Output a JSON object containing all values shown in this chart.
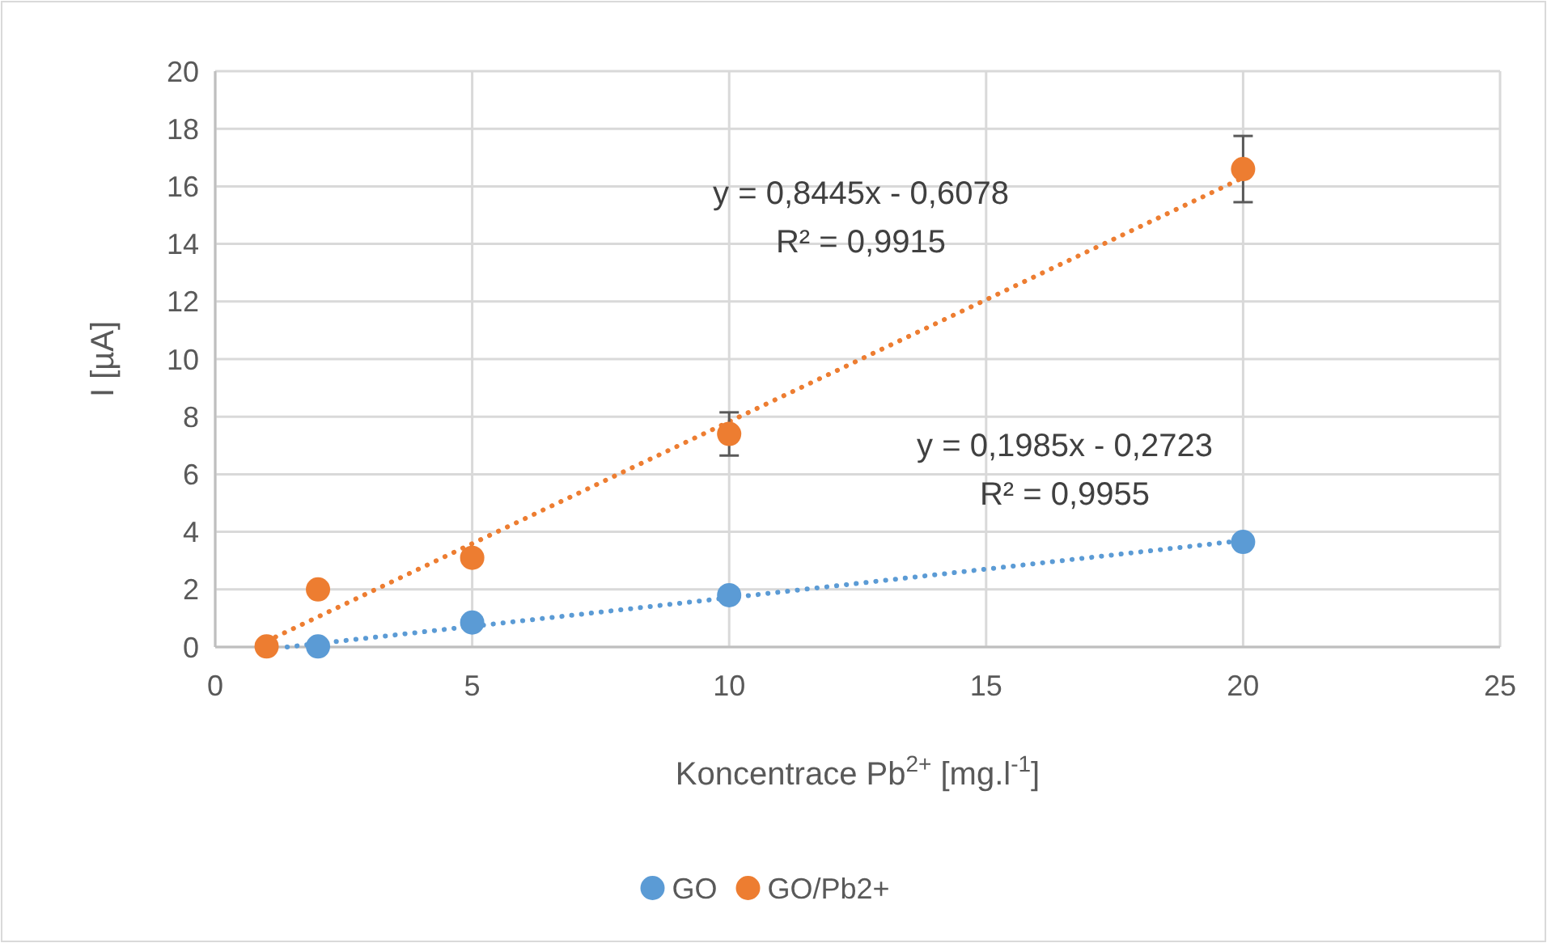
{
  "chart_data": {
    "type": "scatter",
    "xlabel": "Koncentrace Pb$^{2+}$ [mg.l$^{-1}$]",
    "ylabel": "I [µA]",
    "xlim": [
      0,
      25
    ],
    "xticks": [
      0,
      5,
      10,
      15,
      20,
      25
    ],
    "ylim": [
      0,
      20
    ],
    "yticks": [
      0,
      2,
      4,
      6,
      8,
      10,
      12,
      14,
      16,
      18,
      20
    ],
    "grid": true,
    "legend": "bottom",
    "marker": "circle",
    "series": [
      {
        "name": "GO",
        "color": "#5b9bd5",
        "x": [
          2,
          5,
          10,
          20
        ],
        "values": [
          0.02,
          0.85,
          1.8,
          3.65
        ]
      },
      {
        "name": "GO/Pb2+",
        "color": "#ed7d31",
        "x": [
          1,
          2,
          5,
          10,
          20
        ],
        "values": [
          0.02,
          2.0,
          3.1,
          7.4,
          16.6
        ],
        "errors": [
          null,
          null,
          null,
          0.75,
          1.15
        ]
      },
      {
        "type": "line",
        "line_style": "dotted",
        "marker": "none",
        "color": "#5b9bd5",
        "x": [
          1.4,
          20
        ],
        "values": [
          0,
          3.7
        ]
      },
      {
        "type": "line",
        "line_style": "dotted",
        "marker": "none",
        "color": "#ed7d31",
        "x": [
          1,
          20
        ],
        "values": [
          0.2,
          16.3
        ]
      }
    ],
    "annotations": [
      "y = 0,8445x - 0,6078\nR² = 0,9915",
      "y = 0,1985x - 0,2723\nR² = 0,9955"
    ]
  }
}
